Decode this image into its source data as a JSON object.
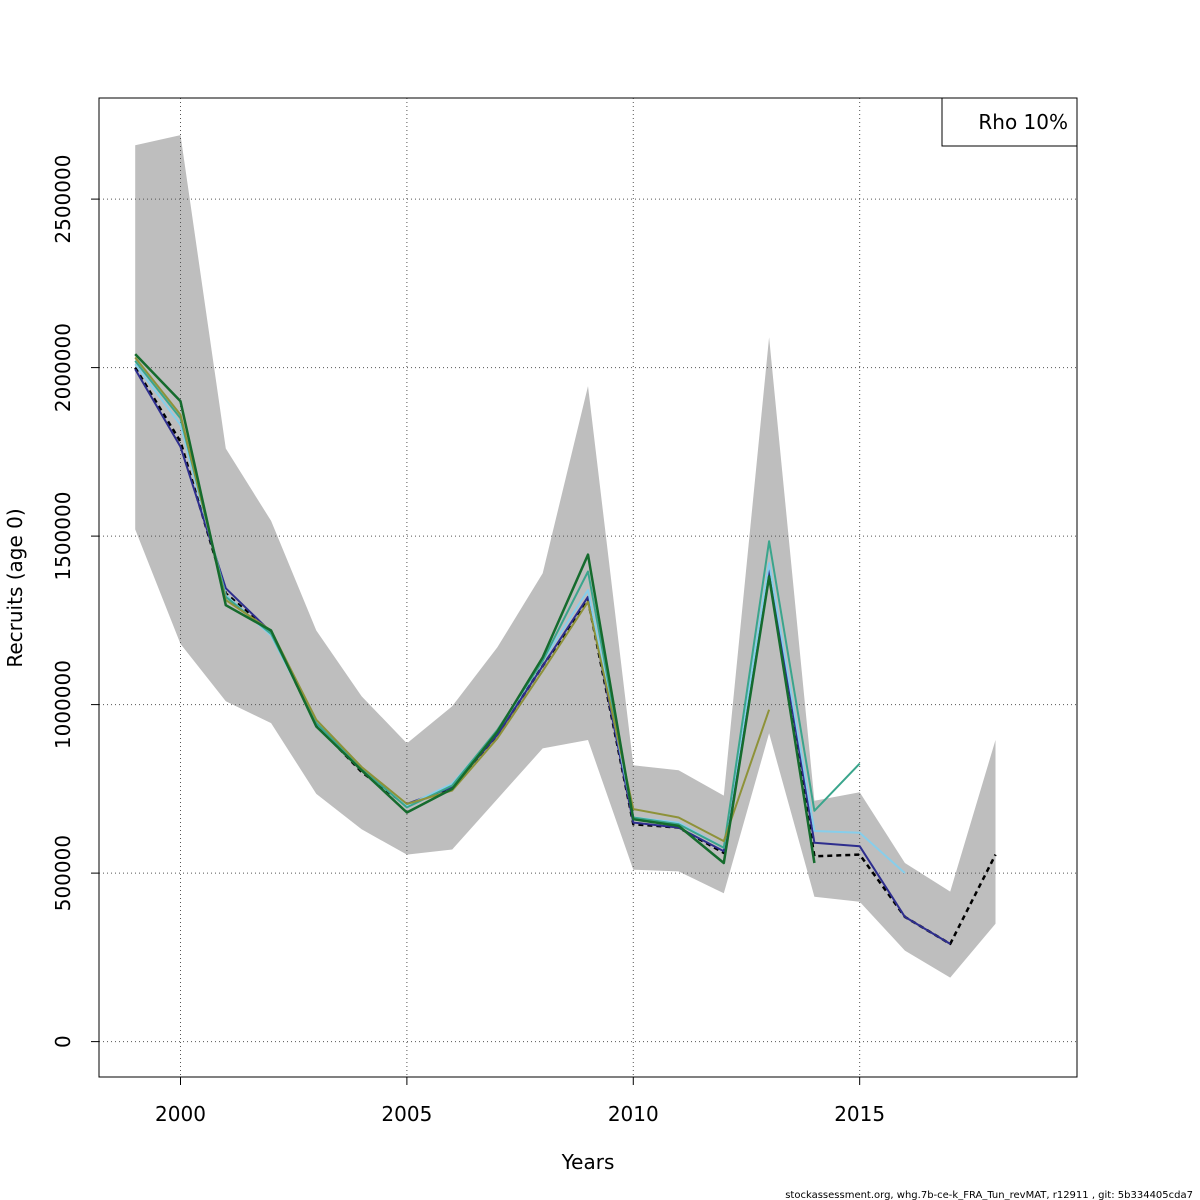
{
  "chart_data": {
    "type": "line",
    "xlabel": "Years",
    "ylabel": "Recruits (age 0)",
    "xlim": [
      1998.2,
      2019.8
    ],
    "ylim": [
      -105000,
      2800000
    ],
    "x_ticks": [
      2000,
      2005,
      2010,
      2015
    ],
    "y_ticks": [
      0,
      500000,
      1000000,
      1500000,
      2000000,
      2500000
    ],
    "x_tick_labels": [
      "2000",
      "2005",
      "2010",
      "2015"
    ],
    "y_tick_labels": [
      "0",
      "500000",
      "1000000",
      "1500000",
      "2000000",
      "2500000"
    ],
    "grid": true,
    "legend": {
      "placement": "top-right",
      "text": "Rho 10%"
    },
    "band": {
      "color": "#bebebe",
      "x": [
        1999,
        2000,
        2001,
        2002,
        2003,
        2004,
        2005,
        2006,
        2007,
        2008,
        2009,
        2010,
        2011,
        2012,
        2013,
        2014,
        2015,
        2016,
        2017,
        2018
      ],
      "upper": [
        2660000,
        2690000,
        1760000,
        1545000,
        1220000,
        1025000,
        885000,
        995000,
        1170000,
        1390000,
        1945000,
        820000,
        805000,
        730000,
        2090000,
        715000,
        740000,
        530000,
        445000,
        895000
      ],
      "lower": [
        1520000,
        1180000,
        1010000,
        945000,
        735000,
        630000,
        555000,
        570000,
        720000,
        870000,
        895000,
        510000,
        505000,
        440000,
        915000,
        430000,
        415000,
        270000,
        190000,
        350000
      ]
    },
    "series": [
      {
        "color": "#000000",
        "dashed": true,
        "width": 2.5,
        "x": [
          1999,
          2000,
          2001,
          2002,
          2003,
          2004,
          2005,
          2006,
          2007,
          2008,
          2009,
          2010,
          2011,
          2012,
          2013,
          2014,
          2015,
          2016,
          2017,
          2018
        ],
        "values": [
          2000000,
          1780000,
          1330000,
          1215000,
          940000,
          800000,
          700000,
          755000,
          910000,
          1115000,
          1310000,
          645000,
          635000,
          560000,
          1390000,
          550000,
          555000,
          370000,
          290000,
          555000
        ]
      },
      {
        "color": "#2e2e8e",
        "dashed": false,
        "width": 2,
        "x": [
          1999,
          2000,
          2001,
          2002,
          2003,
          2004,
          2005,
          2006,
          2007,
          2008,
          2009,
          2010,
          2011,
          2012,
          2013,
          2014,
          2015,
          2016,
          2017
        ],
        "values": [
          1995000,
          1765000,
          1345000,
          1215000,
          945000,
          805000,
          705000,
          755000,
          910000,
          1115000,
          1320000,
          650000,
          635000,
          565000,
          1405000,
          590000,
          580000,
          370000,
          290000
        ]
      },
      {
        "color": "#87ceeb",
        "dashed": false,
        "width": 2,
        "x": [
          1999,
          2000,
          2001,
          2002,
          2003,
          2004,
          2005,
          2006,
          2007,
          2008,
          2009,
          2010,
          2011,
          2012,
          2013,
          2014,
          2015,
          2016
        ],
        "values": [
          2010000,
          1830000,
          1325000,
          1205000,
          945000,
          810000,
          700000,
          765000,
          920000,
          1130000,
          1340000,
          665000,
          650000,
          575000,
          1420000,
          625000,
          620000,
          500000
        ]
      },
      {
        "color": "#3aa58c",
        "dashed": false,
        "width": 2,
        "x": [
          1999,
          2000,
          2001,
          2002,
          2003,
          2004,
          2005,
          2006,
          2007,
          2008,
          2009,
          2010,
          2011,
          2012,
          2013,
          2014,
          2015
        ],
        "values": [
          2020000,
          1850000,
          1320000,
          1210000,
          945000,
          810000,
          695000,
          760000,
          925000,
          1130000,
          1395000,
          665000,
          645000,
          575000,
          1485000,
          685000,
          825000
        ]
      },
      {
        "color": "#8e9239",
        "dashed": false,
        "width": 2,
        "x": [
          1999,
          2000,
          2001,
          2002,
          2003,
          2004,
          2005,
          2006,
          2007,
          2008,
          2009,
          2010,
          2011,
          2012,
          2013
        ],
        "values": [
          2030000,
          1860000,
          1310000,
          1220000,
          955000,
          815000,
          705000,
          745000,
          900000,
          1100000,
          1305000,
          690000,
          665000,
          595000,
          985000
        ]
      },
      {
        "color": "#156b2d",
        "dashed": false,
        "width": 2.5,
        "x": [
          1999,
          2000,
          2001,
          2002,
          2003,
          2004,
          2005,
          2006,
          2007,
          2008,
          2009,
          2010,
          2011,
          2012,
          2013,
          2014
        ],
        "values": [
          2040000,
          1900000,
          1295000,
          1220000,
          935000,
          805000,
          680000,
          750000,
          920000,
          1140000,
          1445000,
          660000,
          640000,
          530000,
          1380000,
          530000
        ]
      }
    ]
  },
  "footer": "stockassessment.org, whg.7b-ce-k_FRA_Tun_revMAT, r12911 , git: 5b334405cda7"
}
